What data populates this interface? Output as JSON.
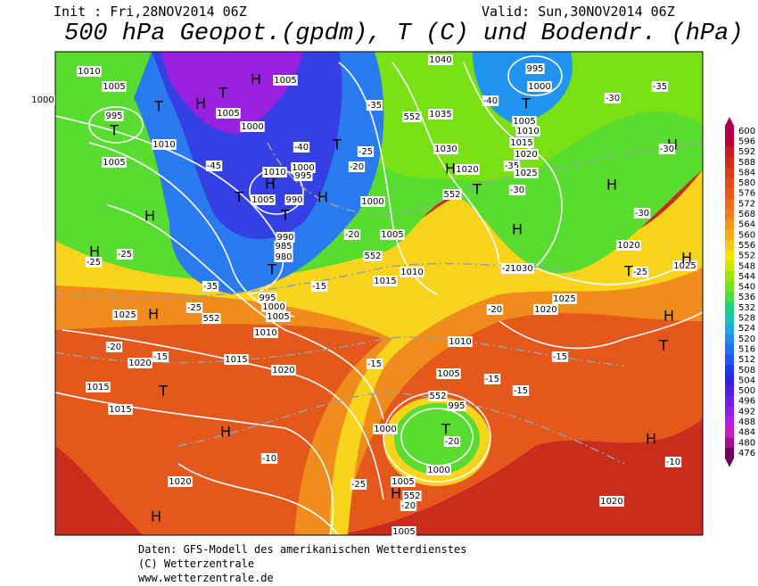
{
  "header": {
    "init": "Init : Fri,28NOV2014 06Z",
    "valid": "Valid: Sun,30NOV2014 06Z",
    "title": "500 hPa Geopot.(gpdm), T (C) und Bodendr. (hPa)"
  },
  "colorbar": {
    "levels": [
      600,
      596,
      592,
      588,
      584,
      580,
      576,
      572,
      568,
      564,
      560,
      556,
      552,
      548,
      544,
      540,
      536,
      532,
      528,
      524,
      520,
      516,
      512,
      508,
      504,
      500,
      496,
      492,
      488,
      484,
      480,
      476
    ],
    "colors": [
      "#a8004c",
      "#b80038",
      "#c41e20",
      "#cc2c1c",
      "#d43c1c",
      "#dc4c1c",
      "#e45c1c",
      "#ea6c1c",
      "#f07c1c",
      "#f4941c",
      "#f8ac1c",
      "#f8c820",
      "#f8e800",
      "#cce800",
      "#a0e400",
      "#78e020",
      "#48dc40",
      "#20d080",
      "#20c4b4",
      "#20a8e4",
      "#2090f0",
      "#2074f0",
      "#2058f0",
      "#2038e8",
      "#3020e0",
      "#5020e0",
      "#7020e0",
      "#9020e0",
      "#b020e0",
      "#c420c4",
      "#a01090",
      "#700060"
    ]
  },
  "map": {
    "labels": [
      "1010",
      "1005",
      "1000",
      "995",
      "T",
      "T",
      "H",
      "T",
      "1005",
      "1000",
      "1010",
      "1005",
      "-45",
      "H",
      "1005",
      "-40",
      "T",
      "1000",
      "1010",
      "995",
      "H",
      "T",
      "1005",
      "990",
      "H",
      "T",
      "1000",
      "990",
      "985",
      "980",
      "T",
      "-20",
      "1005",
      "552",
      "1010",
      "1015",
      "-15",
      "-35",
      "995",
      "1000",
      "1005",
      "1025",
      "H",
      "-25",
      "552",
      "1010",
      "-20",
      "1020",
      "-15",
      "1015",
      "-15",
      "1020",
      "1015",
      "T",
      "1015",
      "H",
      "-10",
      "1020",
      "1000",
      "T",
      "-20",
      "995",
      "552",
      "1005",
      "1010",
      "1000",
      "1005",
      "H",
      "552",
      "-25",
      "-20",
      "1005",
      "1040",
      "995",
      "1000",
      "1035",
      "552",
      "-35",
      "-25",
      "-20",
      "1030",
      "1020",
      "T",
      "552",
      "H",
      "-40",
      "T",
      "1005",
      "1010",
      "1015",
      "1020",
      "-35",
      "1025",
      "-30",
      "H",
      "-30",
      "-35",
      "H",
      "H",
      "-30",
      "-30",
      "1020",
      "T",
      "-25",
      "1025",
      "H",
      "-25",
      "1030",
      "1025",
      "1020",
      "-20",
      "H",
      "T",
      "-15",
      "-15",
      "-15",
      "H",
      "-10",
      "1020",
      "H",
      "-25",
      "-25",
      "H",
      "H"
    ]
  },
  "footer": {
    "source": "Daten: GFS-Modell des amerikanischen Wetterdienstes",
    "copyright": "(C) Wetterzentrale",
    "url": "www.wetterzentrale.de"
  }
}
